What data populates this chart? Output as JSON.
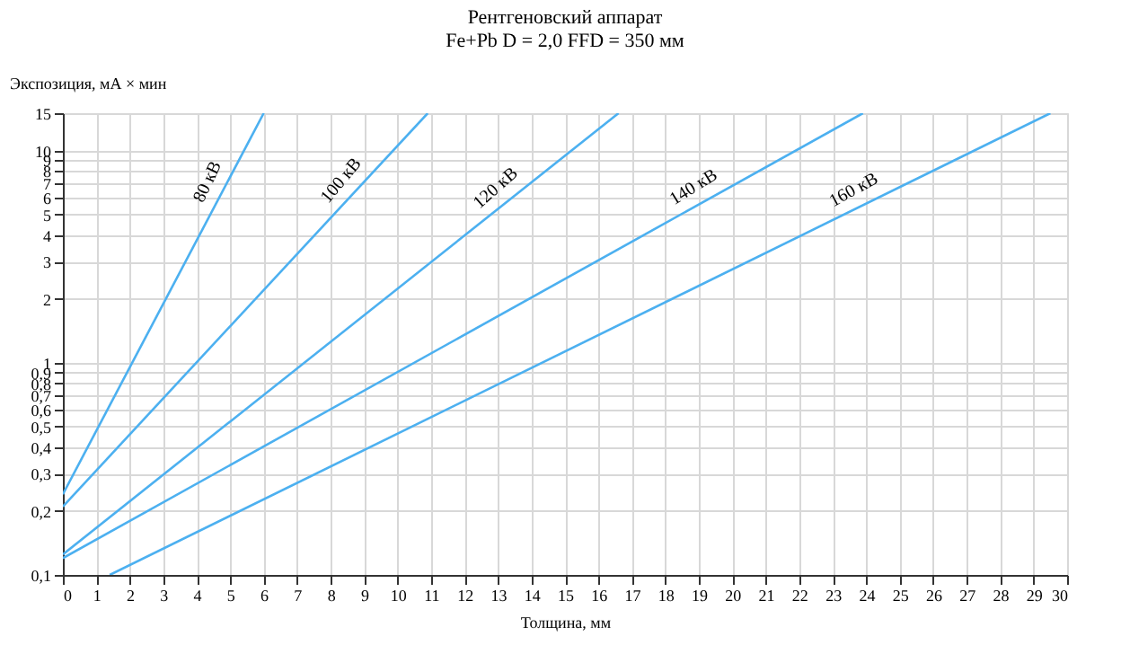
{
  "chart_data": {
    "type": "line",
    "title": "Рентгеновский аппарат",
    "subtitle": "Fe+Pb D = 2,0 FFD = 350 мм",
    "xlabel": "Толщина, мм",
    "ylabel": "Экспозиция, мА × мин",
    "log": "y",
    "grid": true,
    "legend": false,
    "marker": "none",
    "line_style": "solid",
    "xlim": [
      0,
      30
    ],
    "xticks": [
      0,
      1,
      2,
      3,
      4,
      5,
      6,
      7,
      8,
      9,
      10,
      11,
      12,
      13,
      14,
      15,
      16,
      17,
      18,
      19,
      20,
      21,
      22,
      23,
      24,
      25,
      26,
      27,
      28,
      29,
      30
    ],
    "ylim": [
      0.1,
      15
    ],
    "yticks": [
      {
        "value": 0.1,
        "label": "0,1"
      },
      {
        "value": 0.2,
        "label": "0,2"
      },
      {
        "value": 0.3,
        "label": "0,3"
      },
      {
        "value": 0.4,
        "label": "0,4"
      },
      {
        "value": 0.5,
        "label": "0,5"
      },
      {
        "value": 0.6,
        "label": "0,6"
      },
      {
        "value": 0.7,
        "label": "0,7"
      },
      {
        "value": 0.8,
        "label": "0,8"
      },
      {
        "value": 0.9,
        "label": "0,9"
      },
      1,
      2,
      3,
      4,
      5,
      6,
      7,
      8,
      9,
      10,
      15
    ],
    "series": [
      {
        "name": "80 кВ",
        "color": "#4cb0f0",
        "x": [
          0,
          6.0
        ],
        "values": [
          0.24,
          15
        ]
      },
      {
        "name": "100 кВ",
        "color": "#4cb0f0",
        "x": [
          0,
          10.9
        ],
        "values": [
          0.21,
          15
        ]
      },
      {
        "name": "120 кВ",
        "color": "#4cb0f0",
        "x": [
          0,
          16.6
        ],
        "values": [
          0.125,
          15
        ]
      },
      {
        "name": "140 кВ",
        "color": "#4cb0f0",
        "x": [
          0,
          23.9
        ],
        "values": [
          0.12,
          15
        ]
      },
      {
        "name": "160 кВ",
        "color": "#4cb0f0",
        "x": [
          1.4,
          29.5
        ],
        "values": [
          0.1,
          15
        ]
      }
    ]
  }
}
